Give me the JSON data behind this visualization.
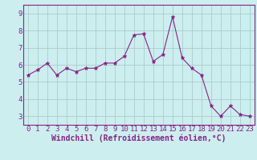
{
  "x": [
    0,
    1,
    2,
    3,
    4,
    5,
    6,
    7,
    8,
    9,
    10,
    11,
    12,
    13,
    14,
    15,
    16,
    17,
    18,
    19,
    20,
    21,
    22,
    23
  ],
  "y": [
    5.4,
    5.7,
    6.1,
    5.4,
    5.8,
    5.6,
    5.8,
    5.8,
    6.1,
    6.1,
    6.5,
    7.75,
    7.8,
    6.2,
    6.6,
    8.8,
    6.4,
    5.8,
    5.4,
    3.6,
    3.0,
    3.6,
    3.1,
    3.0
  ],
  "line_color": "#882288",
  "marker": "*",
  "marker_size": 3.5,
  "bg_color": "#cceeee",
  "grid_color": "#aacccc",
  "xlabel": "Windchill (Refroidissement éolien,°C)",
  "xlabel_fontsize": 7,
  "tick_fontsize": 6.5,
  "ylim": [
    2.5,
    9.5
  ],
  "xlim": [
    -0.5,
    23.5
  ],
  "yticks": [
    3,
    4,
    5,
    6,
    7,
    8,
    9
  ],
  "xticks": [
    0,
    1,
    2,
    3,
    4,
    5,
    6,
    7,
    8,
    9,
    10,
    11,
    12,
    13,
    14,
    15,
    16,
    17,
    18,
    19,
    20,
    21,
    22,
    23
  ],
  "spine_color": "#882288"
}
